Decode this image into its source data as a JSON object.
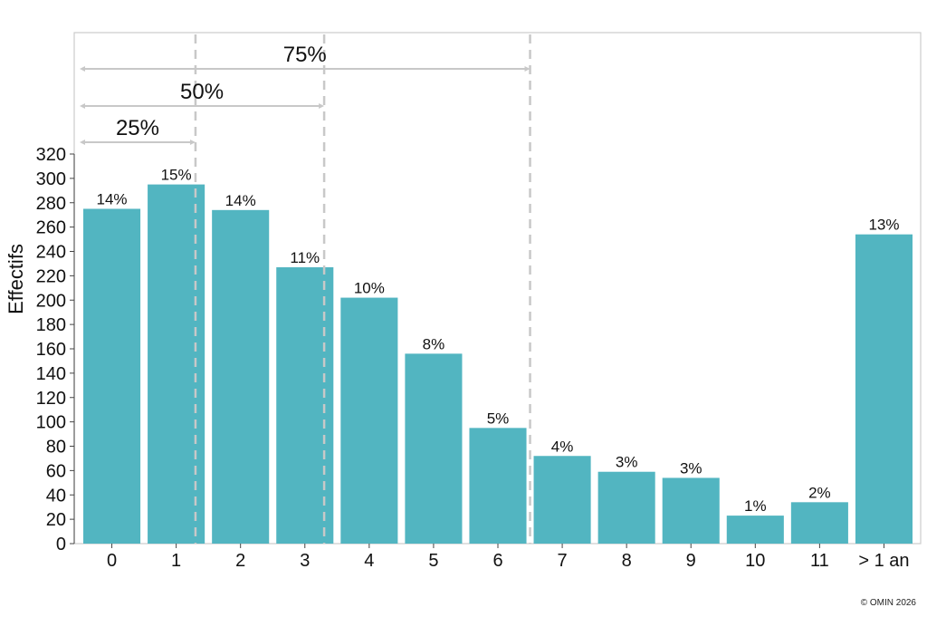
{
  "chart_data": {
    "type": "bar",
    "categories": [
      "0",
      "1",
      "2",
      "3",
      "4",
      "5",
      "6",
      "7",
      "8",
      "9",
      "10",
      "11",
      "> 1 an"
    ],
    "values": [
      275,
      295,
      274,
      227,
      202,
      156,
      95,
      72,
      59,
      54,
      23,
      34,
      254
    ],
    "data_labels": [
      "14%",
      "15%",
      "14%",
      "11%",
      "10%",
      "8%",
      "5%",
      "4%",
      "3%",
      "3%",
      "1%",
      "2%",
      "13%"
    ],
    "xlabel": "",
    "ylabel": "Effectifs",
    "ylim": [
      0,
      320
    ],
    "yticks": [
      0,
      20,
      40,
      60,
      80,
      100,
      120,
      140,
      160,
      180,
      200,
      220,
      240,
      260,
      280,
      300,
      320
    ],
    "grid": false,
    "bar_color": "#52b5c1",
    "reference_color": "#c8c8c8",
    "quartiles": [
      {
        "label": "25%",
        "x": 1.3
      },
      {
        "label": "50%",
        "x": 3.3
      },
      {
        "label": "75%",
        "x": 6.5
      }
    ]
  },
  "footer": {
    "copyright": "© OMIN 2026"
  }
}
